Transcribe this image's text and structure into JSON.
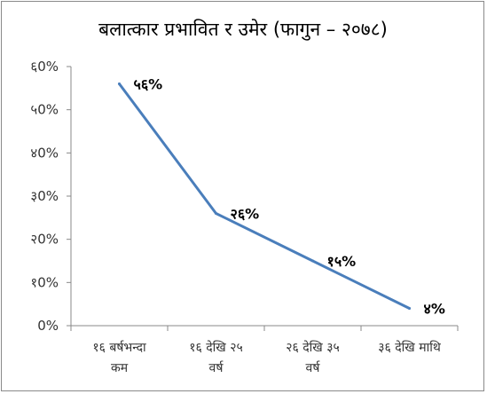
{
  "chart_data": {
    "type": "line",
    "title": "बलात्कार प्रभावित र उमेर (फागुन – २०७८)",
    "categories": [
      [
        "१६ बर्षभन्दा",
        "कम"
      ],
      [
        "१६ देखि २५",
        "वर्ष"
      ],
      [
        "२६ देखि ३५",
        "वर्ष"
      ],
      [
        "३६ देखि माथि"
      ]
    ],
    "values": [
      56,
      26,
      15,
      4
    ],
    "data_labels": [
      "५६%",
      "२६%",
      "१५%",
      "४%"
    ],
    "y_ticks": [
      "0%",
      "१0%",
      "२0%",
      "३0%",
      "४0%",
      "५0%",
      "६0%"
    ],
    "ylim": [
      0,
      60
    ],
    "line_color": "#4a7ebb",
    "legend": "none",
    "grid": false
  }
}
